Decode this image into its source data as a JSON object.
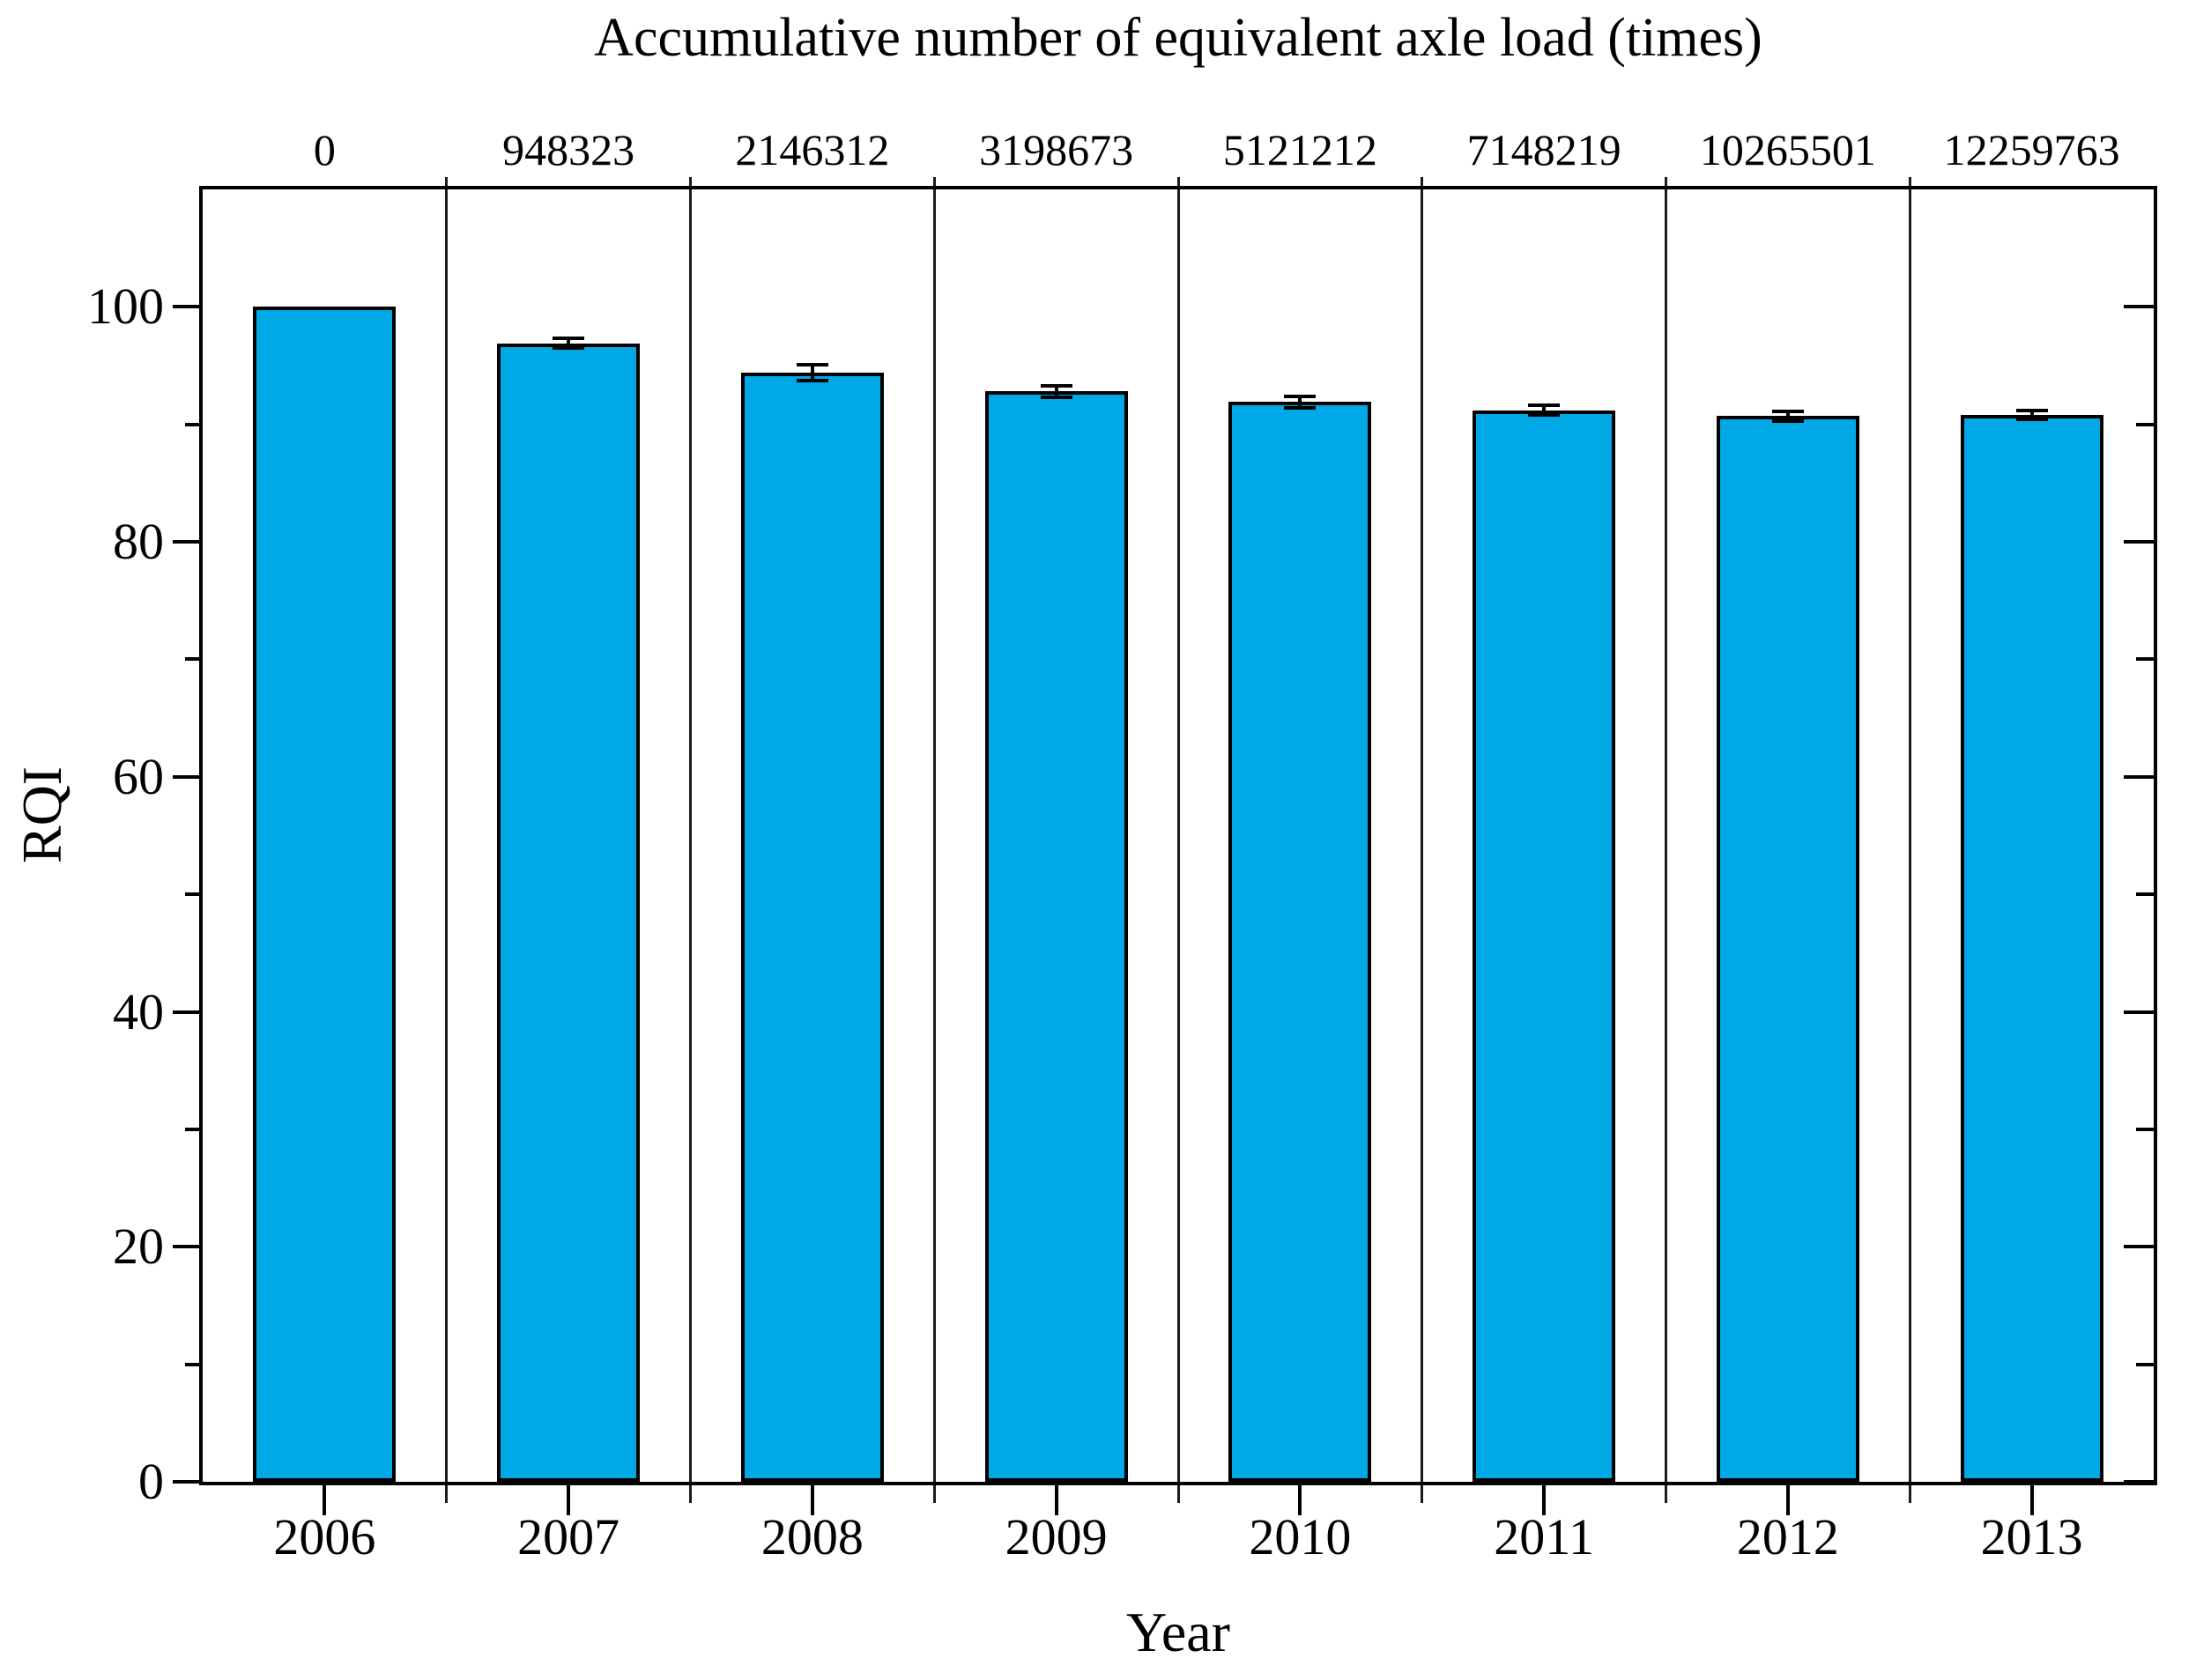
{
  "chart_data": {
    "type": "bar",
    "title": "Accumulative number of equivalent axle load (times)",
    "title_position": "above top axis",
    "xlabel": "Year",
    "ylabel": "RQI",
    "categories": [
      "2006",
      "2007",
      "2008",
      "2009",
      "2010",
      "2011",
      "2012",
      "2013"
    ],
    "top_axis_labels": [
      "0",
      "948323",
      "2146312",
      "3198673",
      "5121212",
      "7148219",
      "10265501",
      "12259763"
    ],
    "series": [
      {
        "name": "RQI",
        "values": [
          100.0,
          96.9,
          94.4,
          92.8,
          91.9,
          91.2,
          90.7,
          90.8
        ],
        "errors": [
          0,
          0.4,
          0.7,
          0.5,
          0.5,
          0.4,
          0.4,
          0.4
        ]
      }
    ],
    "ylim": [
      0,
      110
    ],
    "y_major_ticks": [
      0,
      20,
      40,
      60,
      80,
      100
    ],
    "y_minor_step": 10,
    "grid": "vertical section divider lines between year slots, full plot height",
    "legend": "none",
    "bar_color": "#00A9E6",
    "bar_edge_color": "#000000",
    "frame_color": "#000000",
    "background_color": "#ffffff"
  }
}
